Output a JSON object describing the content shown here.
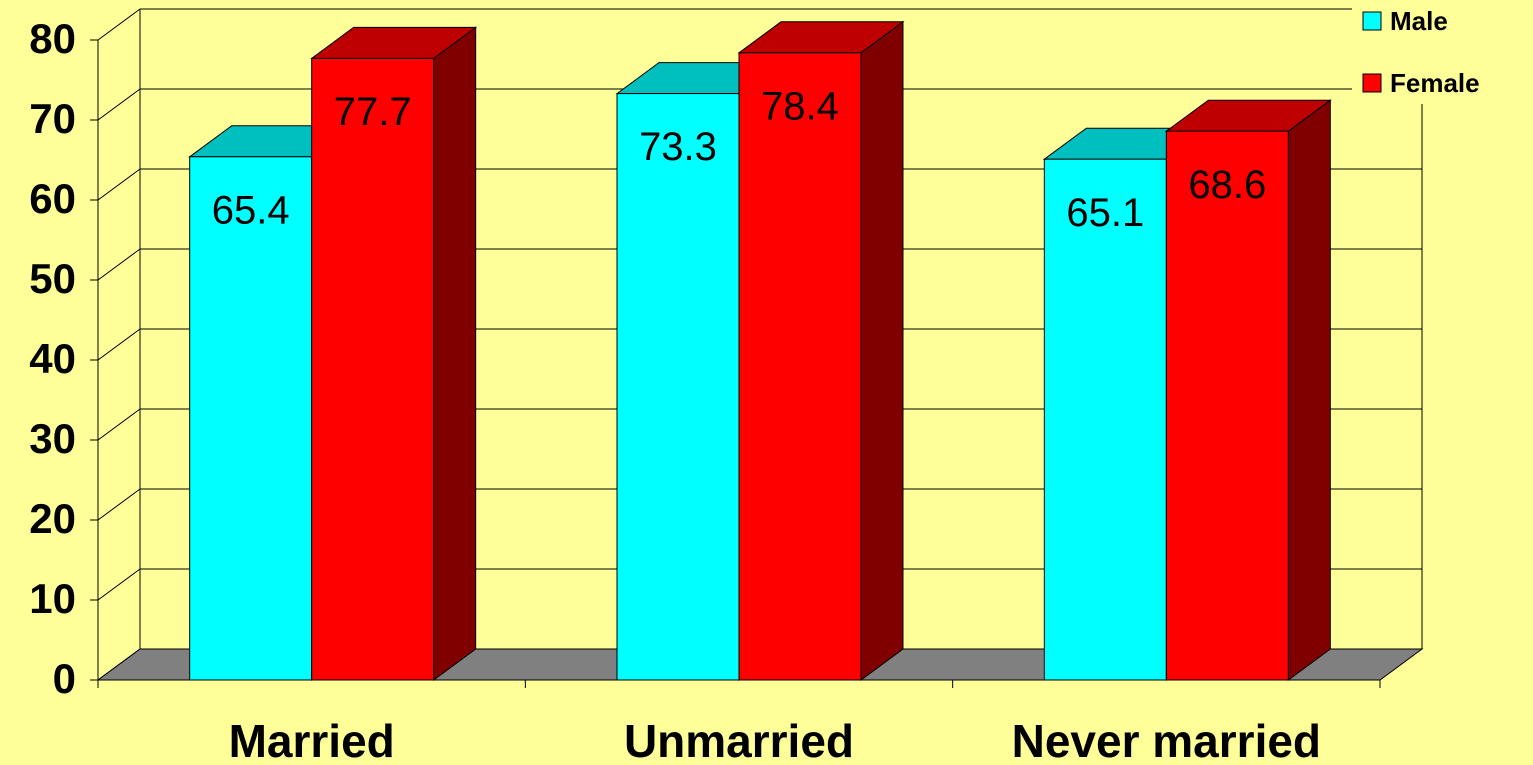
{
  "chart_data": {
    "type": "bar3d",
    "categories": [
      "Married",
      "Unmarried",
      "Never married"
    ],
    "series": [
      {
        "name": "Male",
        "color": "#00ffff",
        "values": [
          65.4,
          73.3,
          65.1
        ]
      },
      {
        "name": "Female",
        "color": "#ff0000",
        "values": [
          77.7,
          78.4,
          68.6
        ]
      }
    ],
    "ylim": [
      0,
      80
    ],
    "yticks": [
      0,
      10,
      20,
      30,
      40,
      50,
      60,
      70,
      80
    ],
    "grid": true,
    "legend": "top-right"
  }
}
